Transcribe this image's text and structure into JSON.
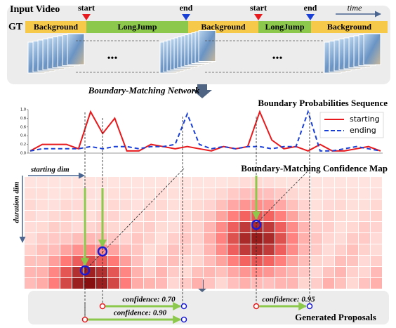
{
  "input_video": {
    "title": "Input Video",
    "gt_label": "GT",
    "time_label": "time",
    "markers": [
      {
        "label": "start"
      },
      {
        "label": "end"
      },
      {
        "label": "start"
      },
      {
        "label": "end"
      }
    ],
    "segments": [
      "Background",
      "LongJump",
      "Background",
      "LongJump",
      "Background"
    ],
    "ellipsis": [
      "•••",
      "•••"
    ]
  },
  "network_label": "Boundary-Matching Network",
  "boundary_chart": {
    "type": "line",
    "title": "Boundary Probabilities Sequence",
    "ylim": [
      0,
      1
    ],
    "yticks": [
      {
        "value": 0,
        "label": "0.0"
      },
      {
        "value": 0.2,
        "label": "0.2"
      },
      {
        "value": 0.4,
        "label": "0.4"
      },
      {
        "value": 0.6,
        "label": "0.6"
      },
      {
        "value": 0.8,
        "label": "0.8"
      },
      {
        "value": 1,
        "label": "1.0"
      }
    ],
    "series": [
      {
        "name": "starting",
        "color": "#e8191c",
        "values": [
          0.05,
          0.2,
          0.2,
          0.2,
          0.1,
          0.95,
          0.45,
          0.8,
          0.05,
          0.05,
          0.2,
          0.15,
          0.1,
          0.15,
          0.1,
          0.05,
          0.15,
          0.1,
          0.15,
          0.95,
          0.3,
          0.1,
          0.15,
          0.05,
          0.2,
          0.05,
          0.05,
          0.1,
          0.15,
          0.05
        ]
      },
      {
        "name": "ending",
        "color": "#1a3fd6",
        "dashed": true,
        "values": [
          0.05,
          0.1,
          0.1,
          0.1,
          0.1,
          0.15,
          0.1,
          0.15,
          0.15,
          0.1,
          0.15,
          0.15,
          0.2,
          0.9,
          0.2,
          0.1,
          0.15,
          0.1,
          0.15,
          0.15,
          0.1,
          0.15,
          0.15,
          0.95,
          0.05,
          0.05,
          0.1,
          0.15,
          0.1,
          0.05
        ]
      }
    ]
  },
  "confidence_map": {
    "title": "Boundary-Matching Confidence Map",
    "x_axis_label": "starting dim",
    "y_axis_label": "duration dim"
  },
  "proposals": {
    "title": "Generated Proposals",
    "items": [
      {
        "label": "confidence: 0.70"
      },
      {
        "label": "confidence: 0.90"
      },
      {
        "label": "confidence: 0.95"
      }
    ]
  }
}
